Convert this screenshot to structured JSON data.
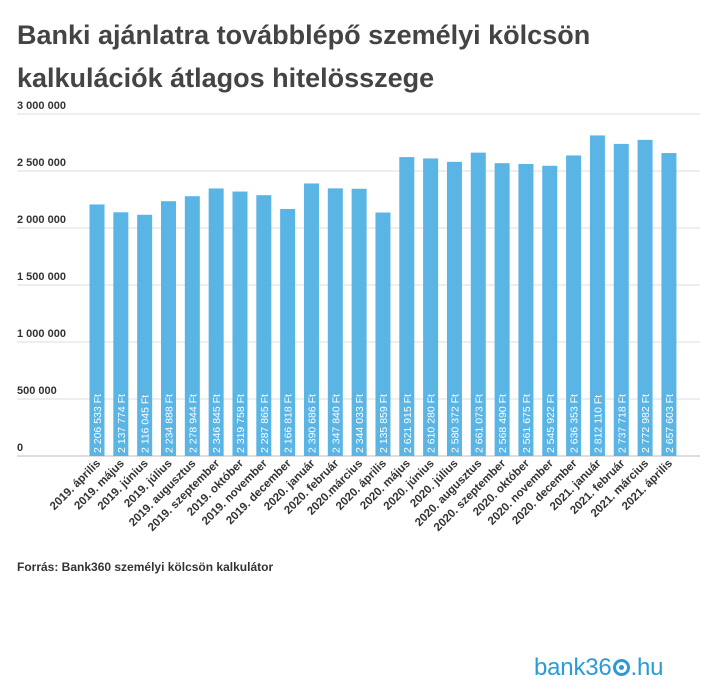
{
  "title": "Banki ajánlatra továbblépő személyi kölcsön kalkulációk átlagos hitelösszege",
  "source": "Forrás: Bank360 személyi kölcsön kalkulátor",
  "logo_text": "bank360.hu",
  "colors": {
    "bar": "#5ab4e4",
    "grid": "#dddddd",
    "text": "#333333",
    "logo": "#2a9bd8"
  },
  "chart_data": {
    "type": "bar",
    "title": "Banki ajánlatra továbblépő személyi kölcsön kalkulációk átlagos hitelösszege",
    "xlabel": "",
    "ylabel": "",
    "ylim": [
      0,
      3000000
    ],
    "yticks": [
      0,
      500000,
      1000000,
      1500000,
      2000000,
      2500000,
      3000000
    ],
    "ytick_labels": [
      "0",
      "500 000",
      "1 000 000",
      "1 500 000",
      "2 000 000",
      "2 500 000",
      "3 000 000"
    ],
    "grid": true,
    "categories": [
      "2019. április",
      "2019. május",
      "2019. június",
      "2019. július",
      "2019. augusztus",
      "2019. szeptember",
      "2019. október",
      "2019. november",
      "2019. december",
      "2020. január",
      "2020. február",
      "2020.március",
      "2020. április",
      "2020. május",
      "2020. június",
      "2020. július",
      "2020. augusztus",
      "2020. szeptember",
      "2020. október",
      "2020. november",
      "2020. december",
      "2021. január",
      "2021. február",
      "2021. március",
      "2021. április"
    ],
    "values": [
      2206533,
      2137774,
      2116045,
      2234888,
      2278944,
      2346845,
      2319758,
      2287865,
      2166818,
      2390686,
      2347840,
      2344033,
      2135859,
      2621915,
      2610280,
      2580372,
      2661073,
      2568490,
      2561675,
      2545922,
      2636353,
      2812110,
      2737718,
      2772982,
      2657603
    ],
    "data_labels": [
      "2 206 533 Ft",
      "2 137 774 Ft",
      "2 116 045 Ft",
      "2 234 888 Ft",
      "2 278 944 Ft",
      "2 346 845 Ft",
      "2 319 758 Ft",
      "2 287 865 Ft",
      "2 166 818 Ft",
      "2 390 686 Ft",
      "2 347 840 Ft",
      "2 344 033 Ft",
      "2 135 859 Ft",
      "2 621 915 Ft",
      "2 610 280 Ft",
      "2 580 372 Ft",
      "2 661 073 Ft",
      "2 568 490 Ft",
      "2 561 675 Ft",
      "2 545 922 Ft",
      "2 636 353 Ft",
      "2 812 110 Ft",
      "2 737 718 Ft",
      "2 772 982 Ft",
      "2 657 603 Ft"
    ]
  }
}
